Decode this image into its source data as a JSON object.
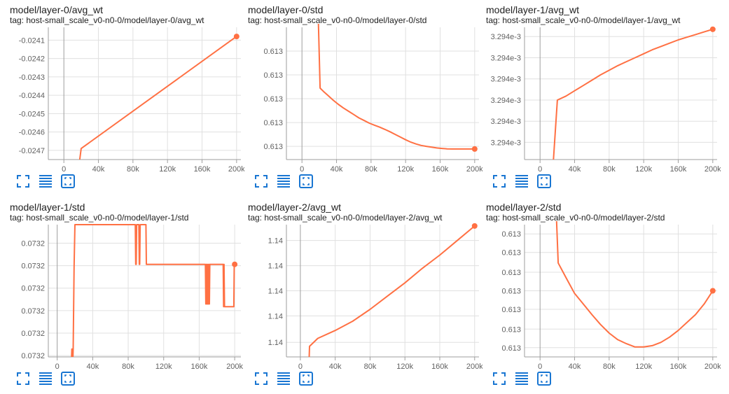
{
  "colors": {
    "line": "#ff7043",
    "axis": "#9e9e9e",
    "grid": "#e0e0e0",
    "icon": "#1976d2"
  },
  "toolbar": {
    "icons": [
      "fit-domain-icon",
      "toggle-log-scale-icon",
      "toggle-y-axis-fit-icon"
    ]
  },
  "cards": [
    {
      "title": "model/layer-0/avg_wt",
      "tag": "tag: host-small_scale_v0-n0-0/model/layer-0/avg_wt"
    },
    {
      "title": "model/layer-0/std",
      "tag": "tag: host-small_scale_v0-n0-0/model/layer-0/std"
    },
    {
      "title": "model/layer-1/avg_wt",
      "tag": "tag: host-small_scale_v0-n0-0/model/layer-1/avg_wt"
    },
    {
      "title": "model/layer-1/std",
      "tag": "tag: host-small_scale_v0-n0-0/model/layer-1/std"
    },
    {
      "title": "model/layer-2/avg_wt",
      "tag": "tag: host-small_scale_v0-n0-0/model/layer-2/avg_wt"
    },
    {
      "title": "model/layer-2/std",
      "tag": "tag: host-small_scale_v0-n0-0/model/layer-2/std"
    }
  ],
  "chart_data": [
    {
      "type": "line",
      "xlim": [
        -18000,
        205000
      ],
      "ylim": [
        -0.02475,
        -0.02403
      ],
      "xticks": [
        0,
        40000,
        80000,
        120000,
        160000,
        200000
      ],
      "xtick_labels": [
        "0",
        "40k",
        "80k",
        "120k",
        "160k",
        "200k"
      ],
      "yticks": [
        -0.0241,
        -0.0242,
        -0.0243,
        -0.0244,
        -0.0245,
        -0.0246,
        -0.0247
      ],
      "ytick_labels": [
        "-0.0241",
        "-0.0242",
        "-0.0243",
        "-0.0244",
        "-0.0245",
        "-0.0246",
        "-0.0247"
      ],
      "series": [
        {
          "x": [
            17000,
            20000,
            200000
          ],
          "y": [
            -0.0248,
            -0.02469,
            -0.02408
          ]
        }
      ]
    },
    {
      "type": "line",
      "xlim": [
        -18000,
        205000
      ],
      "ylim": [
        0,
        1
      ],
      "yticks": [
        0.82,
        0.64,
        0.46,
        0.28,
        0.1
      ],
      "xticks": [
        0,
        40000,
        80000,
        120000,
        160000,
        200000
      ],
      "xtick_labels": [
        "0",
        "40k",
        "80k",
        "120k",
        "160k",
        "200k"
      ],
      "ytick_labels": [
        "0.613",
        "0.613",
        "0.613",
        "0.613",
        "0.613"
      ],
      "series": [
        {
          "x": [
            19000,
            21000,
            25000,
            30000,
            36000,
            42000,
            48000,
            54000,
            60000,
            66000,
            72000,
            78000,
            84000,
            90000,
            96000,
            102000,
            108000,
            114000,
            120000,
            126000,
            132000,
            138000,
            144000,
            150000,
            156000,
            162000,
            168000,
            174000,
            180000,
            186000,
            192000,
            200000
          ],
          "y": [
            1.05,
            0.54,
            0.515,
            0.485,
            0.45,
            0.418,
            0.39,
            0.365,
            0.34,
            0.315,
            0.295,
            0.275,
            0.26,
            0.245,
            0.228,
            0.21,
            0.19,
            0.17,
            0.15,
            0.132,
            0.118,
            0.107,
            0.1,
            0.094,
            0.088,
            0.084,
            0.081,
            0.08,
            0.08,
            0.08,
            0.08,
            0.08
          ]
        }
      ]
    },
    {
      "type": "line",
      "xlim": [
        -18000,
        205000
      ],
      "ylim": [
        0,
        1
      ],
      "yticks": [
        0.93,
        0.77,
        0.61,
        0.45,
        0.29,
        0.13
      ],
      "xticks": [
        0,
        40000,
        80000,
        120000,
        160000,
        200000
      ],
      "xtick_labels": [
        "0",
        "40k",
        "80k",
        "120k",
        "160k",
        "200k"
      ],
      "ytick_labels": [
        "3.294e-3",
        "3.294e-3",
        "3.294e-3",
        "3.294e-3",
        "3.294e-3",
        "3.294e-3"
      ],
      "series": [
        {
          "x": [
            15000,
            20000,
            30000,
            40000,
            50000,
            60000,
            70000,
            80000,
            90000,
            100000,
            110000,
            120000,
            130000,
            140000,
            150000,
            160000,
            170000,
            180000,
            190000,
            200000
          ],
          "y": [
            -0.05,
            0.45,
            0.48,
            0.52,
            0.56,
            0.6,
            0.64,
            0.675,
            0.71,
            0.74,
            0.77,
            0.8,
            0.83,
            0.855,
            0.88,
            0.905,
            0.925,
            0.945,
            0.965,
            0.985
          ]
        }
      ]
    },
    {
      "type": "line",
      "xlim": [
        -10000,
        207000
      ],
      "ylim": [
        0,
        1
      ],
      "yticks": [
        0.86,
        0.69,
        0.52,
        0.35,
        0.18,
        0.01
      ],
      "xticks": [
        0,
        40000,
        80000,
        120000,
        160000,
        200000
      ],
      "xtick_labels": [
        "0",
        "40k",
        "80k",
        "120k",
        "160k",
        "200k"
      ],
      "ytick_labels": [
        "0.0732",
        "0.0732",
        "0.0732",
        "0.0732",
        "0.0732",
        "0.0732"
      ],
      "series": [
        {
          "x": [
            16000,
            16500,
            17000,
            17500,
            18000,
            19000,
            20000,
            88000,
            88500,
            89000,
            89500,
            92000,
            92500,
            93000,
            93500,
            100000,
            100500,
            167000,
            167500,
            168000,
            168500,
            169000,
            169500,
            170000,
            170500,
            171000,
            171500,
            172000,
            172500,
            187000,
            187500,
            188000,
            188500,
            199000,
            199500,
            200000
          ],
          "y": [
            -0.05,
            0.06,
            0.06,
            -0.05,
            0.06,
            0.68,
            1.0,
            1.0,
            0.7,
            0.7,
            1.0,
            1.0,
            0.7,
            0.7,
            1.0,
            1.0,
            0.7,
            0.7,
            0.4,
            0.7,
            0.4,
            0.7,
            0.4,
            0.7,
            0.4,
            0.7,
            0.4,
            0.7,
            0.7,
            0.7,
            0.38,
            0.7,
            0.38,
            0.38,
            0.7,
            0.7
          ]
        }
      ]
    },
    {
      "type": "line",
      "xlim": [
        -16000,
        205000
      ],
      "ylim": [
        0,
        1
      ],
      "yticks": [
        0.88,
        0.69,
        0.5,
        0.31,
        0.11
      ],
      "xticks": [
        0,
        40000,
        80000,
        120000,
        160000,
        200000
      ],
      "xtick_labels": [
        "0",
        "40k",
        "80k",
        "120k",
        "160k",
        "200k"
      ],
      "ytick_labels": [
        "1.14",
        "1.14",
        "1.14",
        "1.14",
        "1.14"
      ],
      "series": [
        {
          "x": [
            10000,
            10500,
            20000,
            40000,
            60000,
            80000,
            100000,
            120000,
            140000,
            160000,
            180000,
            200000
          ],
          "y": [
            -0.02,
            0.08,
            0.14,
            0.2,
            0.27,
            0.36,
            0.46,
            0.56,
            0.67,
            0.77,
            0.88,
            0.99
          ]
        }
      ]
    },
    {
      "type": "line",
      "xlim": [
        -18000,
        205000
      ],
      "ylim": [
        0,
        1
      ],
      "yticks": [
        0.93,
        0.79,
        0.64,
        0.5,
        0.36,
        0.21,
        0.07
      ],
      "xticks": [
        0,
        40000,
        80000,
        120000,
        160000,
        200000
      ],
      "xtick_labels": [
        "0",
        "40k",
        "80k",
        "120k",
        "160k",
        "200k"
      ],
      "ytick_labels": [
        "0.613",
        "0.613",
        "0.613",
        "0.613",
        "0.613",
        "0.613",
        "0.613"
      ],
      "series": [
        {
          "x": [
            19000,
            21000,
            30000,
            40000,
            50000,
            60000,
            70000,
            80000,
            90000,
            100000,
            110000,
            120000,
            130000,
            140000,
            150000,
            160000,
            170000,
            180000,
            190000,
            200000
          ],
          "y": [
            1.05,
            0.71,
            0.6,
            0.48,
            0.4,
            0.32,
            0.245,
            0.18,
            0.13,
            0.1,
            0.075,
            0.075,
            0.085,
            0.11,
            0.15,
            0.2,
            0.26,
            0.32,
            0.4,
            0.5
          ]
        }
      ]
    }
  ]
}
